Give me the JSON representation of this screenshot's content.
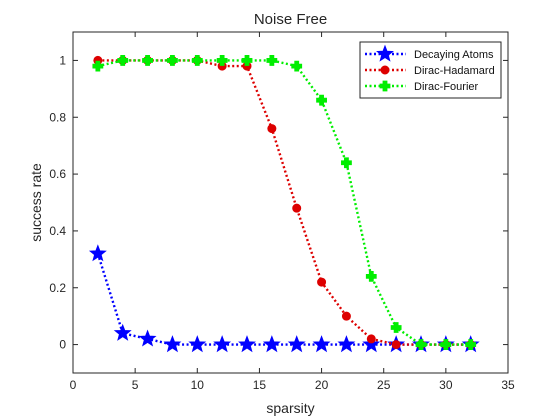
{
  "chart_data": {
    "type": "line",
    "title": "Noise Free",
    "xlabel": "sparsity",
    "ylabel": "success rate",
    "xlim": [
      0,
      35
    ],
    "ylim": [
      -0.1,
      1.1
    ],
    "xticks": [
      0,
      5,
      10,
      15,
      20,
      25,
      30,
      35
    ],
    "yticks": [
      0,
      0.2,
      0.4,
      0.6,
      0.8,
      1
    ],
    "grid": false,
    "legend_position": "top-right",
    "series": [
      {
        "name": "Decaying Atoms",
        "color": "#0000ff",
        "marker": "star",
        "x": [
          2,
          4,
          6,
          8,
          10,
          12,
          14,
          16,
          18,
          20,
          22,
          24,
          26,
          28,
          30,
          32
        ],
        "y": [
          0.32,
          0.04,
          0.02,
          0,
          0,
          0,
          0,
          0,
          0,
          0,
          0,
          0,
          0,
          0,
          0,
          0
        ]
      },
      {
        "name": "Dirac-Hadamard",
        "color": "#dd0000",
        "marker": "circle",
        "x": [
          2,
          4,
          6,
          8,
          10,
          12,
          14,
          16,
          18,
          20,
          22,
          24,
          26,
          28,
          30,
          32
        ],
        "y": [
          1,
          1,
          1,
          1,
          1,
          0.98,
          0.98,
          0.76,
          0.48,
          0.22,
          0.1,
          0.02,
          0,
          0,
          0,
          0
        ]
      },
      {
        "name": "Dirac-Fourier",
        "color": "#00ee00",
        "marker": "plus",
        "x": [
          2,
          4,
          6,
          8,
          10,
          12,
          14,
          16,
          18,
          20,
          22,
          24,
          26,
          28,
          30,
          32
        ],
        "y": [
          0.98,
          1,
          1,
          1,
          1,
          1,
          1,
          1,
          0.98,
          0.86,
          0.64,
          0.24,
          0.06,
          0,
          0,
          0
        ]
      }
    ]
  }
}
